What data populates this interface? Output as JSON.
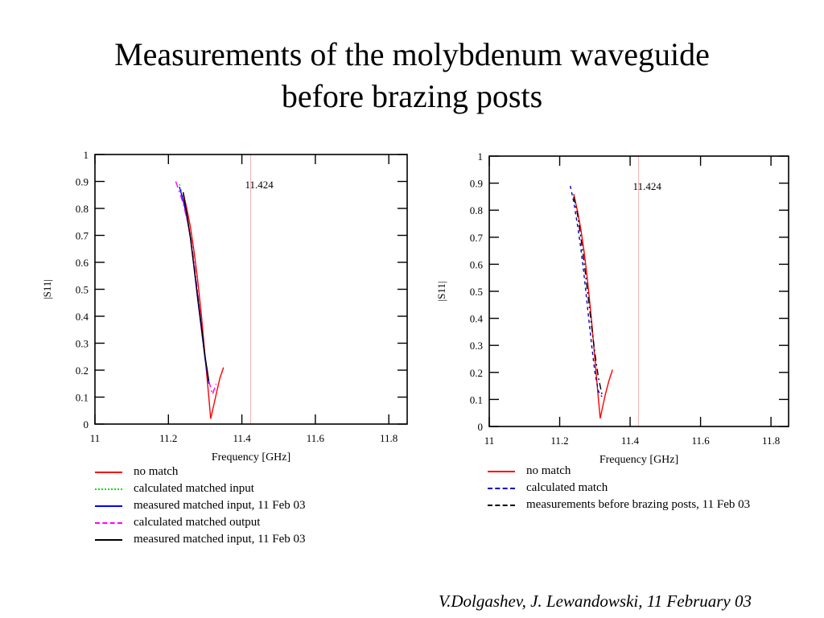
{
  "slide": {
    "title_line1": "Measurements of the molybdenum waveguide",
    "title_line2": "before brazing posts",
    "credit": "V.Dolgashev, J. Lewandowski, 11 February 03"
  },
  "colors": {
    "no_match": "#ff0000",
    "calculated_matched_input": "#00e000",
    "measured_matched_input_blue": "#0000ff",
    "calculated_matched_output": "#ff00ff",
    "measured_matched_input_black": "#000000",
    "calculated_match": "#0000c0",
    "marker_line": "#f0b0b0"
  },
  "chart_data": [
    {
      "type": "line",
      "xlabel": "Frequency [GHz]",
      "ylabel": "|S11|",
      "xlim": [
        11,
        11.85
      ],
      "ylim": [
        0,
        1
      ],
      "xticks": [
        11,
        11.2,
        11.4,
        11.6,
        11.8
      ],
      "xtick_labels": [
        "11",
        "11.2",
        "11.4",
        "11.6",
        "11.8"
      ],
      "yticks": [
        0,
        0.1,
        0.2,
        0.3,
        0.4,
        0.5,
        0.6,
        0.7,
        0.8,
        0.9,
        1
      ],
      "ytick_labels": [
        "0",
        "0.1",
        "0.2",
        "0.3",
        "0.4",
        "0.5",
        "0.6",
        "0.7",
        "0.8",
        "0.9",
        "1"
      ],
      "grid": false,
      "marker": {
        "x": 11.424,
        "label": "11.424"
      },
      "legend_position": "below",
      "series": [
        {
          "name": "no match",
          "color_key": "no_match",
          "dash": "solid",
          "x": [
            11.24,
            11.25,
            11.26,
            11.27,
            11.28,
            11.29,
            11.3,
            11.31,
            11.315,
            11.32,
            11.33,
            11.34,
            11.35
          ],
          "y": [
            0.86,
            0.8,
            0.73,
            0.64,
            0.53,
            0.4,
            0.25,
            0.1,
            0.02,
            0.05,
            0.11,
            0.17,
            0.21
          ]
        },
        {
          "name": "calculated matched input",
          "color_key": "calculated_matched_input",
          "dash": "dotted",
          "x": [
            11.23,
            11.24,
            11.25,
            11.26,
            11.27,
            11.28,
            11.29,
            11.3,
            11.31
          ],
          "y": [
            0.89,
            0.84,
            0.77,
            0.69,
            0.59,
            0.47,
            0.35,
            0.24,
            0.16
          ]
        },
        {
          "name": "measured matched input, 11 Feb 03",
          "color_key": "measured_matched_input_blue",
          "dash": "solid",
          "x": [
            11.23,
            11.24,
            11.25,
            11.26,
            11.27,
            11.28,
            11.29,
            11.3,
            11.31
          ],
          "y": [
            0.88,
            0.83,
            0.77,
            0.69,
            0.58,
            0.46,
            0.35,
            0.24,
            0.15
          ]
        },
        {
          "name": "calculated matched output",
          "color_key": "calculated_matched_output",
          "dash": "dashdot",
          "x": [
            11.22,
            11.24,
            11.26,
            11.27,
            11.28,
            11.29,
            11.3,
            11.31,
            11.32,
            11.33
          ],
          "y": [
            0.9,
            0.82,
            0.7,
            0.6,
            0.48,
            0.36,
            0.25,
            0.16,
            0.11,
            0.15
          ]
        },
        {
          "name": "measured matched input, 11 Feb 03",
          "color_key": "measured_matched_input_black",
          "dash": "solid",
          "x": [
            11.24,
            11.25,
            11.26,
            11.27,
            11.28,
            11.29,
            11.3,
            11.31
          ],
          "y": [
            0.86,
            0.78,
            0.69,
            0.58,
            0.47,
            0.36,
            0.25,
            0.16
          ]
        }
      ]
    },
    {
      "type": "line",
      "xlabel": "Frequency [GHz]",
      "ylabel": "|S11|",
      "xlim": [
        11,
        11.85
      ],
      "ylim": [
        0,
        1
      ],
      "xticks": [
        11,
        11.2,
        11.4,
        11.6,
        11.8
      ],
      "xtick_labels": [
        "11",
        "11.2",
        "11.4",
        "11.6",
        "11.8"
      ],
      "yticks": [
        0,
        0.1,
        0.2,
        0.3,
        0.4,
        0.5,
        0.6,
        0.7,
        0.8,
        0.9,
        1
      ],
      "ytick_labels": [
        "0",
        "0.1",
        "0.2",
        "0.3",
        "0.4",
        "0.5",
        "0.6",
        "0.7",
        "0.8",
        "0.9",
        "1"
      ],
      "grid": false,
      "marker": {
        "x": 11.424,
        "label": "11.424"
      },
      "legend_position": "below",
      "series": [
        {
          "name": "no match",
          "color_key": "no_match",
          "dash": "solid",
          "x": [
            11.24,
            11.25,
            11.26,
            11.27,
            11.28,
            11.29,
            11.3,
            11.31,
            11.315,
            11.32,
            11.33,
            11.34,
            11.35
          ],
          "y": [
            0.86,
            0.8,
            0.73,
            0.64,
            0.53,
            0.4,
            0.25,
            0.1,
            0.03,
            0.06,
            0.12,
            0.17,
            0.21
          ]
        },
        {
          "name": "calculated match",
          "color_key": "calculated_match",
          "dash": "dashed",
          "x": [
            11.23,
            11.24,
            11.25,
            11.26,
            11.27,
            11.28,
            11.29,
            11.3,
            11.31,
            11.32
          ],
          "y": [
            0.89,
            0.83,
            0.75,
            0.66,
            0.55,
            0.43,
            0.31,
            0.2,
            0.13,
            0.11
          ]
        },
        {
          "name": "measurements before brazing posts, 11 Feb 03",
          "color_key": "measured_matched_input_black",
          "dash": "dashdot",
          "x": [
            11.24,
            11.25,
            11.26,
            11.27,
            11.28,
            11.29,
            11.3,
            11.31,
            11.32
          ],
          "y": [
            0.85,
            0.79,
            0.7,
            0.6,
            0.49,
            0.38,
            0.27,
            0.18,
            0.12
          ]
        }
      ]
    }
  ]
}
